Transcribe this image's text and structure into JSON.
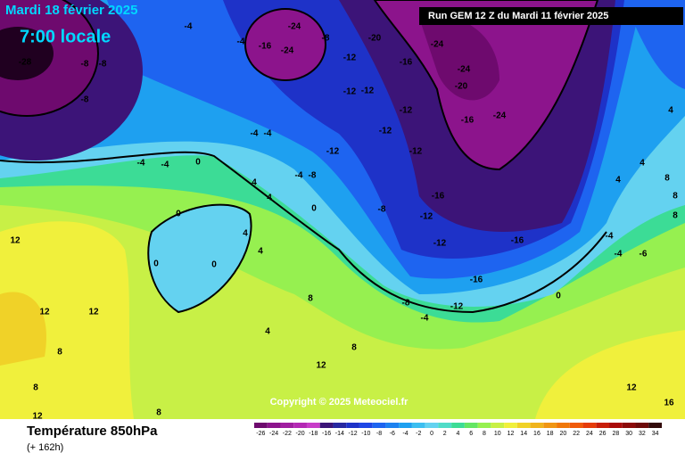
{
  "header": {
    "date": "Mardi 18 février 2025",
    "time": "7:00 locale",
    "run": "Run GEM 12 Z du Mardi 11 février 2025"
  },
  "copyright": "Copyright © 2025 Meteociel.fr",
  "footer": {
    "title": "Température 850hPa",
    "lead": "(+ 162h)"
  },
  "legend": {
    "values": [
      -26,
      -24,
      -22,
      -20,
      -18,
      -16,
      -14,
      -12,
      -10,
      -8,
      -6,
      -4,
      -2,
      0,
      2,
      4,
      6,
      8,
      10,
      12,
      14,
      16,
      18,
      20,
      22,
      24,
      26,
      28,
      30,
      32,
      34
    ],
    "colors": [
      "#6e0a6e",
      "#8c148c",
      "#a01ea0",
      "#b428b4",
      "#c83cc8",
      "#3c1478",
      "#2828a0",
      "#1e32c8",
      "#1e46e6",
      "#1e64f0",
      "#1e82f0",
      "#1ea0f0",
      "#3cbef0",
      "#64d2f0",
      "#50dcc8",
      "#3cdc96",
      "#64e664",
      "#96f050",
      "#c8f046",
      "#f0f03c",
      "#f0d228",
      "#f0b41e",
      "#f09614",
      "#f0780a",
      "#f05a0a",
      "#e63c0a",
      "#c81e0a",
      "#aa0a0a",
      "#8c0a0a",
      "#6e0a0a",
      "#320a0a"
    ]
  },
  "map_labels": [
    -28,
    -8,
    -8,
    -8,
    -4,
    -4,
    -16,
    -24,
    -24,
    -8,
    -20,
    -12,
    -16,
    -24,
    -24,
    -20,
    -12,
    -12,
    -12,
    -16,
    -24,
    -12,
    -12,
    -12,
    -4,
    -4,
    -4,
    -8,
    -4,
    -4,
    0,
    4,
    4,
    0,
    -8,
    -16,
    -12,
    -12,
    -16,
    -16,
    -12,
    -8,
    -4,
    0,
    -4,
    -4,
    -6,
    4,
    4,
    4,
    8,
    8,
    8,
    12,
    12,
    12,
    8,
    8,
    4,
    12,
    8,
    8,
    0,
    0,
    0,
    4,
    4,
    12,
    16,
    12,
    8
  ]
}
